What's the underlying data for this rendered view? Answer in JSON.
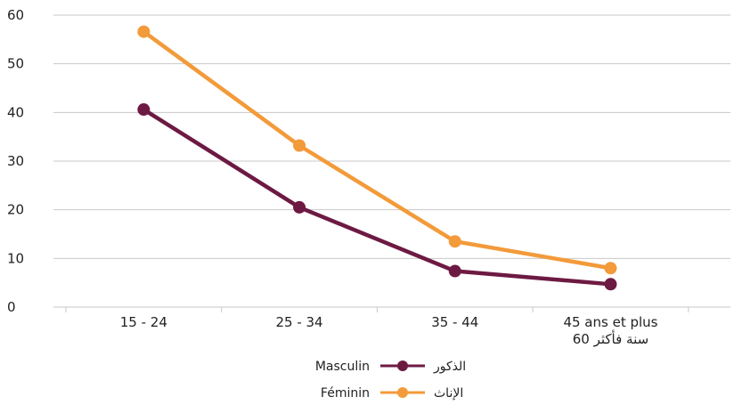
{
  "chart_data": {
    "type": "line",
    "categories": [
      "15 - 24",
      "25 - 34",
      "35 - 44",
      "45 ans et plus"
    ],
    "category_sublabels": [
      "",
      "",
      "",
      "60 سنة فأكثر"
    ],
    "series": [
      {
        "name": "Masculin",
        "name_ar": "الذكور",
        "color": "#6d1a43",
        "values": [
          40.6,
          20.5,
          7.4,
          4.7
        ]
      },
      {
        "name": "Féminin",
        "name_ar": "الإناث",
        "color": "#f39a3a",
        "values": [
          56.6,
          33.2,
          13.5,
          8.0
        ]
      }
    ],
    "ylim": [
      0,
      60
    ],
    "yticks": [
      0,
      10,
      20,
      30,
      40,
      50,
      60
    ],
    "grid": true,
    "legend_placement": "bottom-center",
    "title": "",
    "xlabel": "",
    "ylabel": ""
  }
}
